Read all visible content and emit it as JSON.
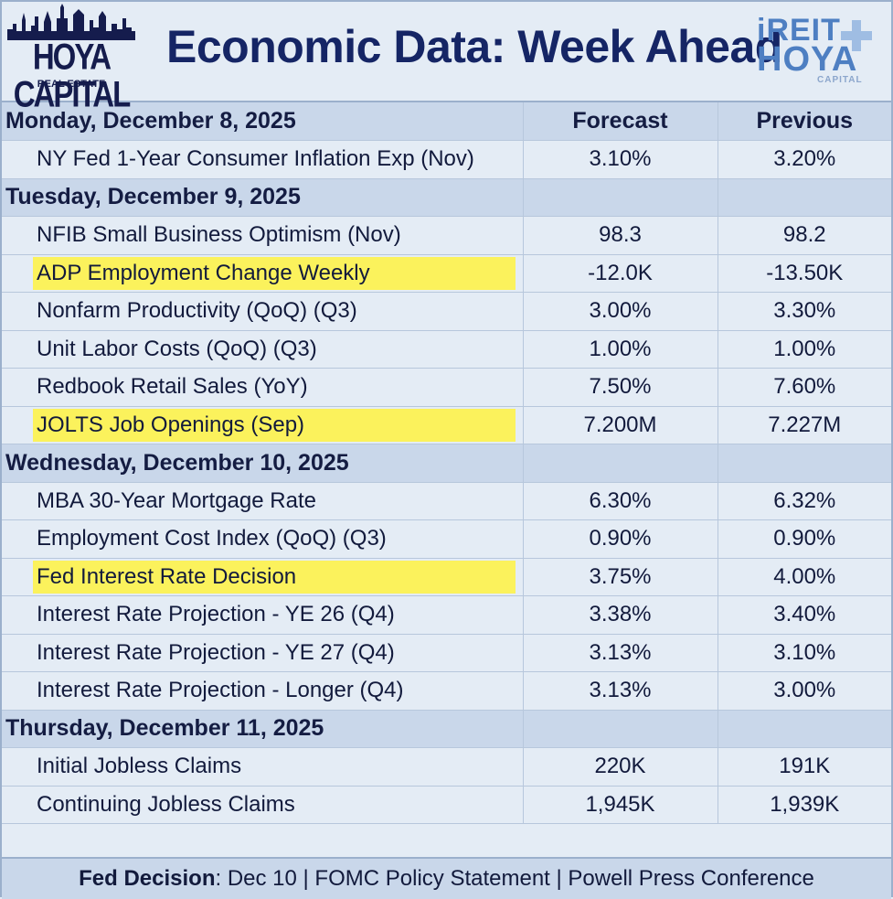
{
  "header": {
    "logo_left_brand": "HOYA CAPITAL",
    "logo_left_sub": "REAL ESTATE",
    "title": "Economic Data: Week Ahead",
    "logo_right_line1": "iREIT",
    "logo_right_line2": "HOYA",
    "logo_right_line3": "CAPITAL"
  },
  "columns": {
    "forecast": "Forecast",
    "previous": "Previous"
  },
  "days": [
    {
      "label": "Monday, December 8, 2025",
      "rows": [
        {
          "name": "NY Fed 1-Year Consumer Inflation Exp (Nov)",
          "forecast": "3.10%",
          "previous": "3.20%",
          "highlight": false
        }
      ]
    },
    {
      "label": "Tuesday, December 9, 2025",
      "rows": [
        {
          "name": "NFIB Small Business Optimism (Nov)",
          "forecast": "98.3",
          "previous": "98.2",
          "highlight": false
        },
        {
          "name": "ADP Employment Change Weekly",
          "forecast": "-12.0K",
          "previous": "-13.50K",
          "highlight": true
        },
        {
          "name": "Nonfarm Productivity (QoQ) (Q3)",
          "forecast": "3.00%",
          "previous": "3.30%",
          "highlight": false
        },
        {
          "name": "Unit Labor Costs (QoQ) (Q3)",
          "forecast": "1.00%",
          "previous": "1.00%",
          "highlight": false
        },
        {
          "name": "Redbook Retail Sales (YoY)",
          "forecast": "7.50%",
          "previous": "7.60%",
          "highlight": false
        },
        {
          "name": "JOLTS Job Openings (Sep)",
          "forecast": "7.200M",
          "previous": "7.227M",
          "highlight": true
        }
      ]
    },
    {
      "label": "Wednesday, December 10, 2025",
      "rows": [
        {
          "name": "MBA 30-Year Mortgage Rate",
          "forecast": "6.30%",
          "previous": "6.32%",
          "highlight": false
        },
        {
          "name": "Employment Cost Index (QoQ) (Q3)",
          "forecast": "0.90%",
          "previous": "0.90%",
          "highlight": false
        },
        {
          "name": "Fed Interest Rate Decision",
          "forecast": "3.75%",
          "previous": "4.00%",
          "highlight": true
        },
        {
          "name": "Interest Rate Projection - YE 26 (Q4)",
          "forecast": "3.38%",
          "previous": "3.40%",
          "highlight": false
        },
        {
          "name": "Interest Rate Projection - YE 27 (Q4)",
          "forecast": "3.13%",
          "previous": "3.10%",
          "highlight": false
        },
        {
          "name": "Interest Rate Projection - Longer (Q4)",
          "forecast": "3.13%",
          "previous": "3.00%",
          "highlight": false
        }
      ]
    },
    {
      "label": "Thursday, December 11, 2025",
      "rows": [
        {
          "name": "Initial Jobless Claims",
          "forecast": "220K",
          "previous": "191K",
          "highlight": false
        },
        {
          "name": "Continuing Jobless Claims",
          "forecast": "1,945K",
          "previous": "1,939K",
          "highlight": false
        }
      ]
    }
  ],
  "footer": {
    "label": "Fed Decision",
    "text": ": Dec 10 | FOMC Policy Statement | Powell Press Conference"
  },
  "colors": {
    "highlight": "#fbf25c",
    "day_row": "#c9d7ea",
    "background": "#e4ecf5",
    "title": "#152565"
  }
}
